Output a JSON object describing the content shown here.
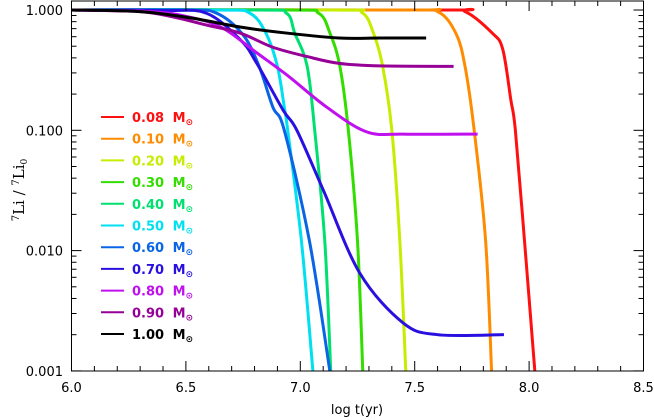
{
  "chart_data": {
    "type": "line",
    "title": "",
    "xlabel": "log t(yr)",
    "ylabel": {
      "iso1": "7",
      "base1": "Li",
      "sep": " / ",
      "iso2": "7",
      "base2": "Li",
      "sub": "0"
    },
    "xlim": [
      6.0,
      8.5
    ],
    "ylim": [
      0.001,
      1.0
    ],
    "yscale": "log",
    "xticks": [
      "6.0",
      "6.5",
      "7.0",
      "7.5",
      "8.0",
      "8.5"
    ],
    "yticks": [
      "1.000",
      "0.100",
      "0.010",
      "0.001"
    ],
    "grid": false,
    "legend_position": "left-center",
    "legend_unit": "M",
    "legend_unit_sub": "⊙",
    "series": [
      {
        "name": "0.08",
        "color": "#ff1010",
        "points": [
          [
            6.0,
            1
          ],
          [
            7.6,
            1
          ],
          [
            7.72,
            0.97
          ],
          [
            7.84,
            0.64
          ],
          [
            7.885,
            0.47
          ],
          [
            7.92,
            0.18
          ],
          [
            7.94,
            0.1
          ],
          [
            7.98,
            0.012
          ],
          [
            8.025,
            0.001
          ]
        ]
      },
      {
        "name": "0.10",
        "color": "#ff8c00",
        "points": [
          [
            6.0,
            1
          ],
          [
            7.45,
            1
          ],
          [
            7.6,
            0.97
          ],
          [
            7.68,
            0.64
          ],
          [
            7.72,
            0.34
          ],
          [
            7.76,
            0.1
          ],
          [
            7.81,
            0.012
          ],
          [
            7.836,
            0.001
          ]
        ]
      },
      {
        "name": "0.20",
        "color": "#c8ec00",
        "points": [
          [
            6.0,
            1
          ],
          [
            7.15,
            1
          ],
          [
            7.27,
            0.95
          ],
          [
            7.32,
            0.64
          ],
          [
            7.36,
            0.34
          ],
          [
            7.4,
            0.1
          ],
          [
            7.435,
            0.012
          ],
          [
            7.461,
            0.001
          ]
        ]
      },
      {
        "name": "0.30",
        "color": "#33dd00",
        "points": [
          [
            6.0,
            1
          ],
          [
            6.95,
            1
          ],
          [
            7.08,
            0.94
          ],
          [
            7.13,
            0.64
          ],
          [
            7.173,
            0.34
          ],
          [
            7.21,
            0.1
          ],
          [
            7.25,
            0.012
          ],
          [
            7.273,
            0.001
          ]
        ]
      },
      {
        "name": "0.40",
        "color": "#00e070",
        "points": [
          [
            6.0,
            1
          ],
          [
            6.82,
            1
          ],
          [
            6.94,
            0.94
          ],
          [
            6.976,
            0.64
          ],
          [
            7.03,
            0.34
          ],
          [
            7.063,
            0.1
          ],
          [
            7.107,
            0.012
          ],
          [
            7.133,
            0.001
          ]
        ]
      },
      {
        "name": "0.50",
        "color": "#00e0f0",
        "points": [
          [
            6.0,
            1
          ],
          [
            6.65,
            1
          ],
          [
            6.78,
            0.94
          ],
          [
            6.85,
            0.64
          ],
          [
            6.9,
            0.34
          ],
          [
            6.93,
            0.156
          ],
          [
            6.945,
            0.1
          ],
          [
            7.005,
            0.012
          ],
          [
            7.055,
            0.001
          ]
        ]
      },
      {
        "name": "0.60",
        "color": "#0a64e6",
        "points": [
          [
            6.0,
            1
          ],
          [
            6.5,
            1
          ],
          [
            6.635,
            0.94
          ],
          [
            6.75,
            0.62
          ],
          [
            6.82,
            0.34
          ],
          [
            6.88,
            0.156
          ],
          [
            6.93,
            0.1
          ],
          [
            7.04,
            0.012
          ],
          [
            7.129,
            0.001
          ]
        ]
      },
      {
        "name": "0.70",
        "color": "#2a10e0",
        "points": [
          [
            6.0,
            1
          ],
          [
            6.4,
            0.99
          ],
          [
            6.59,
            0.94
          ],
          [
            6.74,
            0.56
          ],
          [
            6.81,
            0.36
          ],
          [
            6.925,
            0.147
          ],
          [
            6.985,
            0.1
          ],
          [
            7.1,
            0.032
          ],
          [
            7.26,
            0.0065
          ],
          [
            7.45,
            0.0025
          ],
          [
            7.6,
            0.002
          ],
          [
            7.89,
            0.002
          ]
        ]
      },
      {
        "name": "0.80",
        "color": "#c010f0",
        "points": [
          [
            6.0,
            1
          ],
          [
            6.35,
            0.97
          ],
          [
            6.52,
            0.87
          ],
          [
            6.66,
            0.71
          ],
          [
            6.81,
            0.44
          ],
          [
            6.95,
            0.28
          ],
          [
            7.115,
            0.156
          ],
          [
            7.29,
            0.097
          ],
          [
            7.45,
            0.093
          ],
          [
            7.775,
            0.093
          ]
        ]
      },
      {
        "name": "0.90",
        "color": "#960096",
        "points": [
          [
            6.0,
            1
          ],
          [
            6.3,
            0.97
          ],
          [
            6.45,
            0.87
          ],
          [
            6.59,
            0.75
          ],
          [
            6.74,
            0.64
          ],
          [
            6.88,
            0.49
          ],
          [
            7.03,
            0.41
          ],
          [
            7.17,
            0.36
          ],
          [
            7.35,
            0.343
          ],
          [
            7.67,
            0.34
          ]
        ]
      },
      {
        "name": "1.00",
        "color": "#000000",
        "points": [
          [
            6.0,
            1
          ],
          [
            6.3,
            0.97
          ],
          [
            6.52,
            0.86
          ],
          [
            6.74,
            0.72
          ],
          [
            6.95,
            0.64
          ],
          [
            7.17,
            0.585
          ],
          [
            7.35,
            0.585
          ],
          [
            7.55,
            0.585
          ]
        ]
      }
    ]
  }
}
